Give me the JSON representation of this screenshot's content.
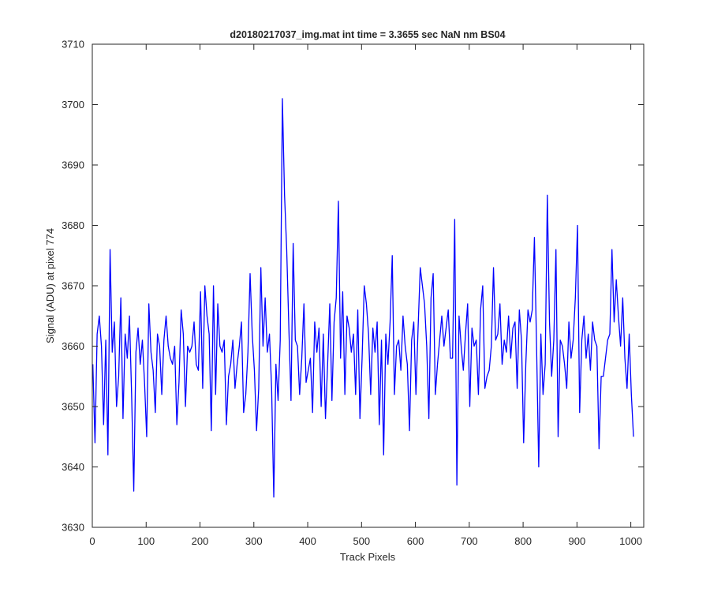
{
  "chart_data": {
    "type": "line",
    "title": "d20180217037_img.mat int time = 3.3655 sec  NaN nm BS04",
    "xlabel": "Track Pixels",
    "ylabel": "Signal (ADU) at pixel 774",
    "xlim": [
      0,
      1024
    ],
    "ylim": [
      3630,
      3710
    ],
    "xticks": [
      0,
      100,
      200,
      300,
      400,
      500,
      600,
      700,
      800,
      900,
      1000
    ],
    "yticks": [
      3630,
      3640,
      3650,
      3660,
      3670,
      3680,
      3690,
      3700,
      3710
    ],
    "grid": false,
    "legend": "none",
    "series_color": "#0000ff",
    "axis_color": "#262626",
    "series": [
      {
        "x_start": 1,
        "x_step": 4,
        "values": [
          3657,
          3644,
          3662,
          3665,
          3660,
          3647,
          3661,
          3642,
          3676,
          3659,
          3664,
          3650,
          3655,
          3668,
          3648,
          3662,
          3658,
          3665,
          3652,
          3636,
          3659,
          3663,
          3657,
          3661,
          3654,
          3645,
          3667,
          3659,
          3656,
          3649,
          3662,
          3660,
          3652,
          3661,
          3665,
          3660,
          3658,
          3657,
          3660,
          3647,
          3654,
          3666,
          3662,
          3650,
          3660,
          3659,
          3660,
          3664,
          3657,
          3656,
          3669,
          3653,
          3670,
          3665,
          3662,
          3646,
          3670,
          3652,
          3667,
          3660,
          3659,
          3661,
          3647,
          3655,
          3657,
          3661,
          3653,
          3657,
          3660,
          3664,
          3649,
          3652,
          3659,
          3672,
          3662,
          3656,
          3646,
          3653,
          3673,
          3660,
          3668,
          3659,
          3662,
          3653,
          3635,
          3657,
          3651,
          3661,
          3701,
          3685,
          3676,
          3663,
          3651,
          3677,
          3661,
          3660,
          3652,
          3658,
          3667,
          3654,
          3656,
          3658,
          3649,
          3664,
          3659,
          3663,
          3650,
          3662,
          3648,
          3657,
          3667,
          3651,
          3664,
          3668,
          3684,
          3658,
          3669,
          3652,
          3665,
          3663,
          3659,
          3662,
          3652,
          3666,
          3648,
          3658,
          3670,
          3667,
          3662,
          3652,
          3663,
          3659,
          3664,
          3647,
          3661,
          3642,
          3662,
          3657,
          3664,
          3675,
          3652,
          3660,
          3661,
          3656,
          3665,
          3660,
          3657,
          3646,
          3661,
          3664,
          3652,
          3663,
          3673,
          3670,
          3667,
          3660,
          3648,
          3668,
          3672,
          3652,
          3657,
          3661,
          3665,
          3660,
          3663,
          3666,
          3658,
          3658,
          3681,
          3637,
          3665,
          3660,
          3656,
          3662,
          3667,
          3650,
          3663,
          3660,
          3661,
          3652,
          3666,
          3670,
          3653,
          3655,
          3656,
          3660,
          3673,
          3661,
          3662,
          3667,
          3657,
          3661,
          3659,
          3665,
          3658,
          3663,
          3664,
          3653,
          3666,
          3661,
          3644,
          3657,
          3666,
          3664,
          3666,
          3678,
          3660,
          3640,
          3662,
          3652,
          3657,
          3685,
          3664,
          3655,
          3661,
          3676,
          3645,
          3661,
          3660,
          3657,
          3653,
          3664,
          3658,
          3661,
          3668,
          3680,
          3649,
          3661,
          3665,
          3658,
          3662,
          3656,
          3664,
          3661,
          3660,
          3643,
          3655,
          3655,
          3658,
          3661,
          3662,
          3676,
          3664,
          3671,
          3665,
          3660,
          3668,
          3658,
          3653,
          3662,
          3652,
          3645
        ]
      }
    ]
  }
}
